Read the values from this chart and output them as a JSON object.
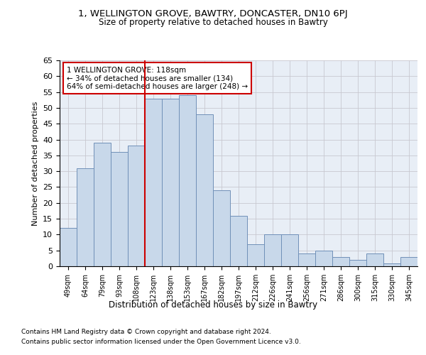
{
  "title1": "1, WELLINGTON GROVE, BAWTRY, DONCASTER, DN10 6PJ",
  "title2": "Size of property relative to detached houses in Bawtry",
  "xlabel": "Distribution of detached houses by size in Bawtry",
  "ylabel": "Number of detached properties",
  "categories": [
    "49sqm",
    "64sqm",
    "79sqm",
    "93sqm",
    "108sqm",
    "123sqm",
    "138sqm",
    "153sqm",
    "167sqm",
    "182sqm",
    "197sqm",
    "212sqm",
    "226sqm",
    "241sqm",
    "256sqm",
    "271sqm",
    "286sqm",
    "300sqm",
    "315sqm",
    "330sqm",
    "345sqm"
  ],
  "values": [
    12,
    31,
    39,
    36,
    38,
    53,
    53,
    54,
    48,
    24,
    16,
    7,
    10,
    10,
    4,
    5,
    3,
    2,
    4,
    1,
    3
  ],
  "bar_color": "#c8d8ea",
  "bar_edge_color": "#7090b8",
  "vline_color": "#cc0000",
  "annotation_text": "1 WELLINGTON GROVE: 118sqm\n← 34% of detached houses are smaller (134)\n64% of semi-detached houses are larger (248) →",
  "annotation_box_color": "#ffffff",
  "annotation_box_edge": "#cc0000",
  "ylim": [
    0,
    65
  ],
  "yticks": [
    0,
    5,
    10,
    15,
    20,
    25,
    30,
    35,
    40,
    45,
    50,
    55,
    60,
    65
  ],
  "grid_color": "#c8c8d0",
  "bg_color": "#e8eef6",
  "footer1": "Contains HM Land Registry data © Crown copyright and database right 2024.",
  "footer2": "Contains public sector information licensed under the Open Government Licence v3.0."
}
